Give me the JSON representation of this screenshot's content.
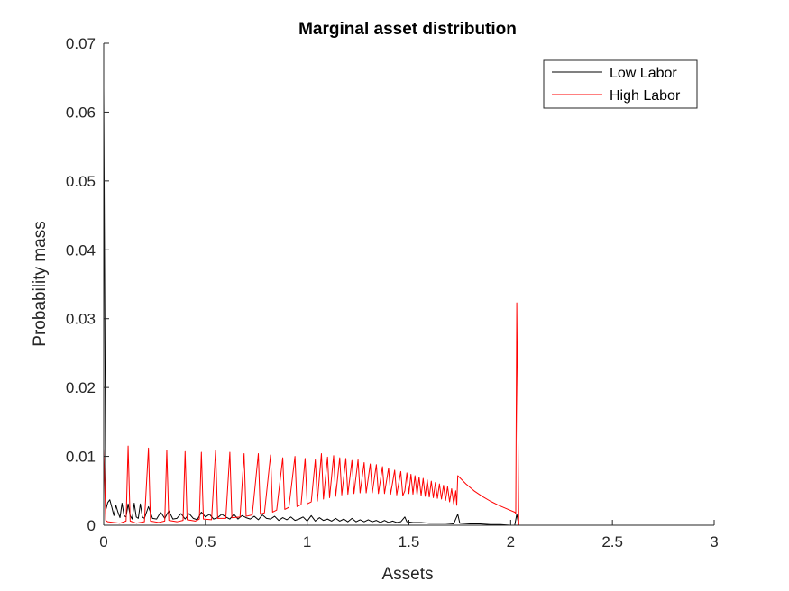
{
  "chart_data": {
    "type": "line",
    "title": "Marginal asset distribution",
    "xlabel": "Assets",
    "ylabel": "Probability mass",
    "xlim": [
      0,
      3
    ],
    "ylim": [
      0,
      0.07
    ],
    "xticks": [
      0,
      0.5,
      1,
      1.5,
      2,
      2.5,
      3
    ],
    "xtick_labels": [
      "0",
      "0.5",
      "1",
      "1.5",
      "2",
      "2.5",
      "3"
    ],
    "yticks": [
      0,
      0.01,
      0.02,
      0.03,
      0.04,
      0.05,
      0.06,
      0.07
    ],
    "ytick_labels": [
      "0",
      "0.01",
      "0.02",
      "0.03",
      "0.04",
      "0.05",
      "0.06",
      "0.07"
    ],
    "grid": false,
    "legend_position": "top-right",
    "series": [
      {
        "name": "Low Labor",
        "color": "#000000",
        "points": [
          [
            0,
            0.0636
          ],
          [
            0.01,
            0.0022
          ],
          [
            0.02,
            0.0033
          ],
          [
            0.03,
            0.0037
          ],
          [
            0.04,
            0.0026
          ],
          [
            0.05,
            0.0014
          ],
          [
            0.06,
            0.0029
          ],
          [
            0.07,
            0.0019
          ],
          [
            0.08,
            0.0011
          ],
          [
            0.09,
            0.0032
          ],
          [
            0.1,
            0.0014
          ],
          [
            0.11,
            0.0012
          ],
          [
            0.12,
            0.0031
          ],
          [
            0.13,
            0.0014
          ],
          [
            0.14,
            0.0009
          ],
          [
            0.15,
            0.0032
          ],
          [
            0.16,
            0.0012
          ],
          [
            0.17,
            0.001
          ],
          [
            0.18,
            0.0031
          ],
          [
            0.19,
            0.0012
          ],
          [
            0.2,
            0.001
          ],
          [
            0.22,
            0.0027
          ],
          [
            0.24,
            0.001
          ],
          [
            0.26,
            0.0009
          ],
          [
            0.28,
            0.0019
          ],
          [
            0.3,
            0.001
          ],
          [
            0.32,
            0.0021
          ],
          [
            0.34,
            0.0009
          ],
          [
            0.36,
            0.001
          ],
          [
            0.38,
            0.0017
          ],
          [
            0.4,
            0.0009
          ],
          [
            0.42,
            0.0017
          ],
          [
            0.44,
            0.001
          ],
          [
            0.46,
            0.0008
          ],
          [
            0.48,
            0.0019
          ],
          [
            0.5,
            0.0012
          ],
          [
            0.52,
            0.0016
          ],
          [
            0.54,
            0.0009
          ],
          [
            0.56,
            0.0011
          ],
          [
            0.58,
            0.0016
          ],
          [
            0.6,
            0.0012
          ],
          [
            0.62,
            0.0009
          ],
          [
            0.64,
            0.0016
          ],
          [
            0.66,
            0.0009
          ],
          [
            0.68,
            0.0014
          ],
          [
            0.7,
            0.0011
          ],
          [
            0.72,
            0.0009
          ],
          [
            0.74,
            0.0013
          ],
          [
            0.76,
            0.0008
          ],
          [
            0.78,
            0.0015
          ],
          [
            0.8,
            0.001
          ],
          [
            0.82,
            0.0009
          ],
          [
            0.84,
            0.0013
          ],
          [
            0.86,
            0.0007
          ],
          [
            0.88,
            0.0011
          ],
          [
            0.9,
            0.0008
          ],
          [
            0.92,
            0.0012
          ],
          [
            0.94,
            0.0007
          ],
          [
            0.96,
            0.0009
          ],
          [
            0.98,
            0.0012
          ],
          [
            1.0,
            0.0006
          ],
          [
            1.02,
            0.0014
          ],
          [
            1.04,
            0.0006
          ],
          [
            1.06,
            0.0011
          ],
          [
            1.08,
            0.0007
          ],
          [
            1.1,
            0.0009
          ],
          [
            1.12,
            0.0006
          ],
          [
            1.14,
            0.001
          ],
          [
            1.16,
            0.0006
          ],
          [
            1.18,
            0.0009
          ],
          [
            1.2,
            0.0005
          ],
          [
            1.22,
            0.001
          ],
          [
            1.24,
            0.0005
          ],
          [
            1.26,
            0.0008
          ],
          [
            1.28,
            0.0005
          ],
          [
            1.3,
            0.0008
          ],
          [
            1.32,
            0.0005
          ],
          [
            1.34,
            0.0007
          ],
          [
            1.36,
            0.0004
          ],
          [
            1.38,
            0.0007
          ],
          [
            1.4,
            0.0004
          ],
          [
            1.42,
            0.0006
          ],
          [
            1.44,
            0.0004
          ],
          [
            1.46,
            0.0005
          ],
          [
            1.48,
            0.0012
          ],
          [
            1.49,
            0.0005
          ],
          [
            1.52,
            0.0004
          ],
          [
            1.56,
            0.0004
          ],
          [
            1.6,
            0.0003
          ],
          [
            1.64,
            0.0003
          ],
          [
            1.68,
            0.0003
          ],
          [
            1.72,
            0.0002
          ],
          [
            1.74,
            0.0016
          ],
          [
            1.75,
            0.0003
          ],
          [
            1.8,
            0.0002
          ],
          [
            1.85,
            0.0002
          ],
          [
            1.9,
            0.0001
          ],
          [
            1.95,
            0.0001
          ],
          [
            2.0,
            0.0
          ],
          [
            2.02,
            0.0
          ],
          [
            2.03,
            0.0016
          ],
          [
            2.04,
            0.0
          ],
          [
            2.1,
            0.0
          ],
          [
            2.5,
            0.0
          ],
          [
            3.0,
            0.0
          ]
        ]
      },
      {
        "name": "High Labor",
        "color": "#ff0000",
        "points": [
          [
            0,
            0.0112
          ],
          [
            0.01,
            0.0007
          ],
          [
            0.02,
            0.0005
          ],
          [
            0.05,
            0.0004
          ],
          [
            0.08,
            0.0003
          ],
          [
            0.11,
            0.0006
          ],
          [
            0.12,
            0.0115
          ],
          [
            0.13,
            0.0006
          ],
          [
            0.16,
            0.0003
          ],
          [
            0.2,
            0.0005
          ],
          [
            0.22,
            0.0112
          ],
          [
            0.23,
            0.0006
          ],
          [
            0.27,
            0.0004
          ],
          [
            0.3,
            0.0006
          ],
          [
            0.31,
            0.0109
          ],
          [
            0.32,
            0.0007
          ],
          [
            0.36,
            0.0005
          ],
          [
            0.39,
            0.0007
          ],
          [
            0.4,
            0.0107
          ],
          [
            0.41,
            0.0008
          ],
          [
            0.45,
            0.0006
          ],
          [
            0.47,
            0.0009
          ],
          [
            0.48,
            0.0106
          ],
          [
            0.49,
            0.0009
          ],
          [
            0.53,
            0.0008
          ],
          [
            0.55,
            0.0109
          ],
          [
            0.56,
            0.001
          ],
          [
            0.6,
            0.001
          ],
          [
            0.62,
            0.0106
          ],
          [
            0.63,
            0.0011
          ],
          [
            0.67,
            0.0012
          ],
          [
            0.69,
            0.0104
          ],
          [
            0.7,
            0.0013
          ],
          [
            0.73,
            0.0015
          ],
          [
            0.76,
            0.0104
          ],
          [
            0.77,
            0.0016
          ],
          [
            0.79,
            0.0018
          ],
          [
            0.82,
            0.0102
          ],
          [
            0.83,
            0.0019
          ],
          [
            0.85,
            0.0022
          ],
          [
            0.88,
            0.0098
          ],
          [
            0.89,
            0.0023
          ],
          [
            0.91,
            0.0026
          ],
          [
            0.94,
            0.01
          ],
          [
            0.95,
            0.0027
          ],
          [
            0.97,
            0.003
          ],
          [
            0.99,
            0.0097
          ],
          [
            1.0,
            0.0031
          ],
          [
            1.02,
            0.0034
          ],
          [
            1.04,
            0.0095
          ],
          [
            1.05,
            0.0035
          ],
          [
            1.07,
            0.0104
          ],
          [
            1.08,
            0.0038
          ],
          [
            1.1,
            0.0099
          ],
          [
            1.11,
            0.004
          ],
          [
            1.13,
            0.0101
          ],
          [
            1.14,
            0.0042
          ],
          [
            1.16,
            0.0098
          ],
          [
            1.17,
            0.0044
          ],
          [
            1.19,
            0.0097
          ],
          [
            1.2,
            0.0045
          ],
          [
            1.22,
            0.0094
          ],
          [
            1.23,
            0.0046
          ],
          [
            1.25,
            0.0095
          ],
          [
            1.26,
            0.0047
          ],
          [
            1.28,
            0.0091
          ],
          [
            1.29,
            0.0047
          ],
          [
            1.31,
            0.0089
          ],
          [
            1.32,
            0.0047
          ],
          [
            1.34,
            0.0088
          ],
          [
            1.35,
            0.0046
          ],
          [
            1.37,
            0.0085
          ],
          [
            1.38,
            0.0046
          ],
          [
            1.4,
            0.0083
          ],
          [
            1.41,
            0.0045
          ],
          [
            1.43,
            0.008
          ],
          [
            1.44,
            0.0044
          ],
          [
            1.46,
            0.0078
          ],
          [
            1.47,
            0.0043
          ],
          [
            1.48,
            0.005
          ],
          [
            1.49,
            0.0076
          ],
          [
            1.5,
            0.0046
          ],
          [
            1.51,
            0.0074
          ],
          [
            1.52,
            0.0045
          ],
          [
            1.53,
            0.0072
          ],
          [
            1.54,
            0.0044
          ],
          [
            1.55,
            0.007
          ],
          [
            1.56,
            0.0043
          ],
          [
            1.57,
            0.0068
          ],
          [
            1.58,
            0.0042
          ],
          [
            1.59,
            0.0066
          ],
          [
            1.6,
            0.0041
          ],
          [
            1.61,
            0.0064
          ],
          [
            1.62,
            0.004
          ],
          [
            1.63,
            0.0062
          ],
          [
            1.64,
            0.0039
          ],
          [
            1.65,
            0.006
          ],
          [
            1.66,
            0.0038
          ],
          [
            1.67,
            0.0058
          ],
          [
            1.68,
            0.0036
          ],
          [
            1.69,
            0.0056
          ],
          [
            1.7,
            0.0034
          ],
          [
            1.71,
            0.0053
          ],
          [
            1.72,
            0.0031
          ],
          [
            1.73,
            0.005
          ],
          [
            1.735,
            0.0029
          ],
          [
            1.74,
            0.0072
          ],
          [
            1.78,
            0.006
          ],
          [
            1.82,
            0.005
          ],
          [
            1.86,
            0.0042
          ],
          [
            1.9,
            0.0035
          ],
          [
            1.94,
            0.0029
          ],
          [
            1.98,
            0.0024
          ],
          [
            2.02,
            0.0019
          ],
          [
            2.025,
            0.0017
          ],
          [
            2.03,
            0.0323
          ],
          [
            2.04,
            0.0
          ],
          [
            2.1,
            0.0
          ],
          [
            2.5,
            0.0
          ],
          [
            3.0,
            0.0
          ]
        ]
      }
    ]
  }
}
